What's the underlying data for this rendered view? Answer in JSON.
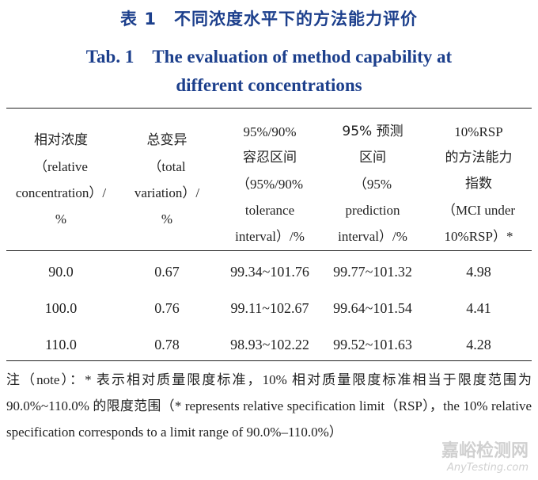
{
  "title": {
    "cn": "表 1　不同浓度水平下的方法能力评价",
    "en_line1": "Tab. 1　The evaluation of method capability at",
    "en_line2": "different concentrations"
  },
  "headers": [
    [
      "相对浓度",
      "（relative",
      "concentration）/",
      "%"
    ],
    [
      "总变异",
      "（total",
      "variation）/",
      "%"
    ],
    [
      "95%/90%",
      "容忍区间",
      "（95%/90%",
      "tolerance",
      "interval）/%"
    ],
    [
      "95% 预测",
      "区间",
      "（95%",
      "prediction",
      "interval）/%"
    ],
    [
      "10%RSP",
      "的方法能力",
      "指数",
      "（MCI under",
      "10%RSP）*"
    ]
  ],
  "rows": [
    [
      "90.0",
      "0.67",
      "99.34~101.76",
      "99.77~101.32",
      "4.98"
    ],
    [
      "100.0",
      "0.76",
      "99.11~102.67",
      "99.64~101.54",
      "4.41"
    ],
    [
      "110.0",
      "0.78",
      "98.93~102.22",
      "99.52~101.63",
      "4.28"
    ]
  ],
  "note": "注（note）：* 表示相对质量限度标准，10% 相对质量限度标准相当于限度范围为 90.0%~110.0% 的限度范围（* represents relative specification limit（RSP），the 10% relative specification corresponds to a limit range of 90.0%–110.0%）",
  "watermark": {
    "cn": "嘉峪检测网",
    "en": "AnyTesting.com"
  }
}
